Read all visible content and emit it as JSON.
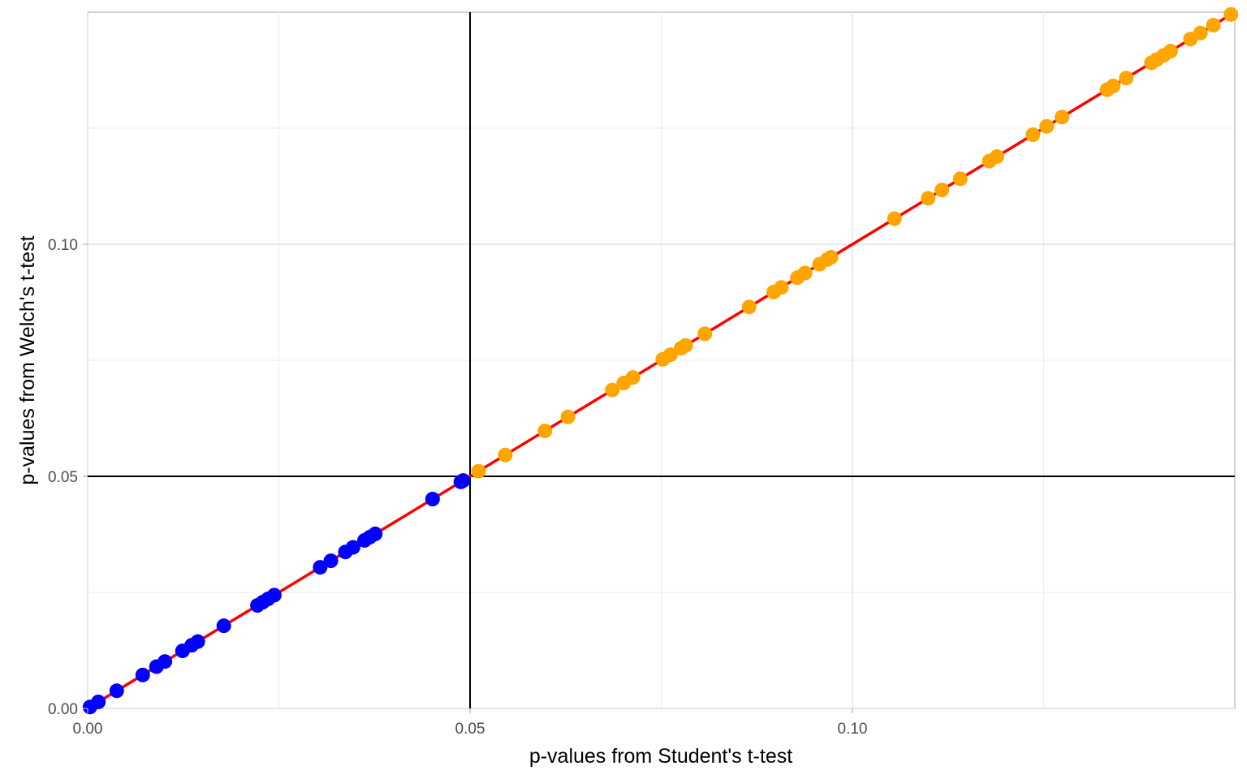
{
  "chart_data": {
    "type": "scatter",
    "title": "",
    "xlabel": "p-values from Student's t-test",
    "ylabel": "p-values from Welch's t-test",
    "xlim": [
      0,
      0.15
    ],
    "ylim": [
      0,
      0.15
    ],
    "x_ticks": [
      {
        "value": 0.0,
        "label": "0.00"
      },
      {
        "value": 0.05,
        "label": "0.05"
      },
      {
        "value": 0.1,
        "label": "0.10"
      }
    ],
    "y_ticks": [
      {
        "value": 0.0,
        "label": "0.00"
      },
      {
        "value": 0.05,
        "label": "0.05"
      },
      {
        "value": 0.1,
        "label": "0.10"
      }
    ],
    "minor_ticks": [
      0.025,
      0.075,
      0.125
    ],
    "grid": true,
    "reference_lines": {
      "x": 0.05,
      "y": 0.05,
      "color": "#000000"
    },
    "identity_line": {
      "from": [
        0,
        0
      ],
      "to": [
        0.15,
        0.15
      ],
      "color": "#ff0000"
    },
    "colors": {
      "significant": "#0000ff",
      "not_significant": "#ffa500"
    },
    "series": [
      {
        "group": "significant",
        "points": [
          [
            0.0003,
            0.0003
          ],
          [
            0.0014,
            0.0014
          ],
          [
            0.0038,
            0.0038
          ],
          [
            0.0072,
            0.0072
          ],
          [
            0.009,
            0.009
          ],
          [
            0.0101,
            0.0101
          ],
          [
            0.0124,
            0.0124
          ],
          [
            0.0136,
            0.0136
          ],
          [
            0.0144,
            0.0144
          ],
          [
            0.0178,
            0.0178
          ],
          [
            0.0222,
            0.0222
          ],
          [
            0.0229,
            0.0229
          ],
          [
            0.0236,
            0.0236
          ],
          [
            0.0244,
            0.0244
          ],
          [
            0.0304,
            0.0304
          ],
          [
            0.0318,
            0.0318
          ],
          [
            0.0337,
            0.0337
          ],
          [
            0.0347,
            0.0347
          ],
          [
            0.0362,
            0.0362
          ],
          [
            0.0369,
            0.0369
          ],
          [
            0.0376,
            0.0376
          ],
          [
            0.0451,
            0.0451
          ],
          [
            0.0488,
            0.0488
          ],
          [
            0.0491,
            0.0491
          ]
        ]
      },
      {
        "group": "not_significant",
        "points": [
          [
            0.0511,
            0.0511
          ],
          [
            0.0546,
            0.0546
          ],
          [
            0.0598,
            0.0598
          ],
          [
            0.0628,
            0.0628
          ],
          [
            0.0686,
            0.0686
          ],
          [
            0.0701,
            0.0701
          ],
          [
            0.0713,
            0.0713
          ],
          [
            0.0752,
            0.0752
          ],
          [
            0.0762,
            0.0762
          ],
          [
            0.0776,
            0.0776
          ],
          [
            0.0782,
            0.0782
          ],
          [
            0.0807,
            0.0807
          ],
          [
            0.0865,
            0.0865
          ],
          [
            0.0897,
            0.0897
          ],
          [
            0.0907,
            0.0907
          ],
          [
            0.0928,
            0.0928
          ],
          [
            0.0938,
            0.0938
          ],
          [
            0.0957,
            0.0957
          ],
          [
            0.0967,
            0.0967
          ],
          [
            0.0972,
            0.0972
          ],
          [
            0.1055,
            0.1055
          ],
          [
            0.1099,
            0.1099
          ],
          [
            0.1117,
            0.1117
          ],
          [
            0.1141,
            0.1141
          ],
          [
            0.1179,
            0.1179
          ],
          [
            0.1189,
            0.1189
          ],
          [
            0.1236,
            0.1236
          ],
          [
            0.1254,
            0.1254
          ],
          [
            0.1274,
            0.1274
          ],
          [
            0.1333,
            0.1333
          ],
          [
            0.1341,
            0.1341
          ],
          [
            0.1358,
            0.1358
          ],
          [
            0.1391,
            0.1391
          ],
          [
            0.1398,
            0.1398
          ],
          [
            0.1407,
            0.1407
          ],
          [
            0.1416,
            0.1416
          ],
          [
            0.1442,
            0.1442
          ],
          [
            0.1455,
            0.1455
          ],
          [
            0.1472,
            0.1472
          ],
          [
            0.1495,
            0.1495
          ]
        ]
      }
    ]
  }
}
